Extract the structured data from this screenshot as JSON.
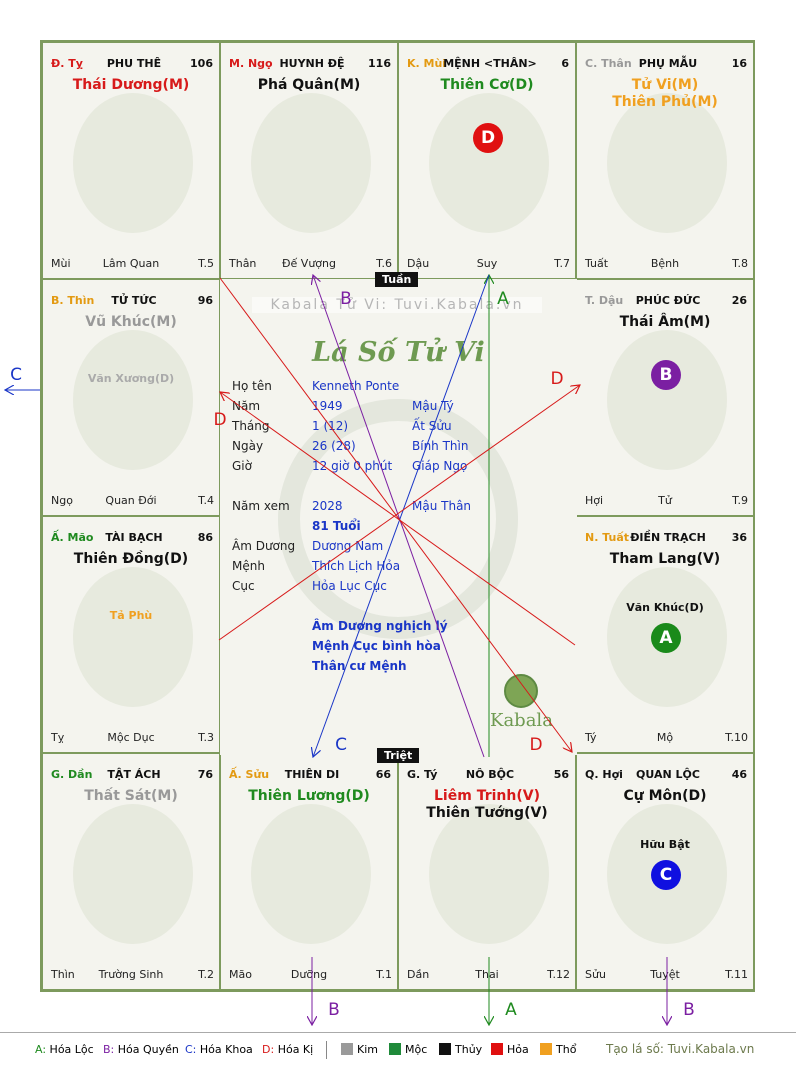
{
  "center": {
    "brand": "Kabala Tử Vi: Tuvi.Kabala.vn",
    "logo": "Lá Số Tử Vi",
    "tag_top": "Tuần",
    "tag_bottom": "Triệt",
    "rows": [
      {
        "label": "Họ tên",
        "v1": "Kenneth Ponte",
        "v2": ""
      },
      {
        "label": "Năm",
        "v1": "1949",
        "v2": "Mậu Tý"
      },
      {
        "label": "Tháng",
        "v1": "1  (12)",
        "v2": "Ất Sửu"
      },
      {
        "label": "Ngày",
        "v1": "26  (28)",
        "v2": "Bính Thìn"
      },
      {
        "label": "Giờ",
        "v1": "12 giờ 0 phút",
        "v2": "Giáp Ngọ"
      }
    ],
    "nam_xem_label": "Năm xem",
    "nam_xem_value": "2028",
    "nam_xem_can_chi": "Mậu Thân",
    "tuoi": "81 Tuổi",
    "rows2": [
      {
        "label": "Âm Dương",
        "v1": "Dương Nam"
      },
      {
        "label": "Mệnh",
        "v1": "Thích Lịch Hỏa"
      },
      {
        "label": "Cục",
        "v1": "Hỏa Lục Cục"
      }
    ],
    "notes": [
      "Âm Dương nghịch lý",
      "Mệnh Cục bình hòa",
      "Thân cư Mệnh"
    ],
    "kabala_logo": "Kabala"
  },
  "cells": [
    {
      "branch": "Đ. Tỵ",
      "branch_color": "#d71a1a",
      "name": "PHU THÊ",
      "num": "106",
      "stars": [
        {
          "t": "Thái Dương(M)",
          "c": "#d71a1a"
        }
      ],
      "minor": "",
      "circle": "",
      "bl": "Mùi",
      "bm": "Lâm Quan",
      "br": "T.5"
    },
    {
      "branch": "M. Ngọ",
      "branch_color": "#d71a1a",
      "name": "HUYNH ĐỆ",
      "num": "116",
      "stars": [
        {
          "t": "Phá Quân(M)",
          "c": "#111111"
        }
      ],
      "minor": "",
      "circle": "",
      "bl": "Thân",
      "bm": "Đế Vượng",
      "br": "T.6"
    },
    {
      "branch": "K. Mùi",
      "branch_color": "#e39a12",
      "name": "MỆNH <THÂN>",
      "num": "6",
      "stars": [
        {
          "t": "Thiên Cơ(D)",
          "c": "#1f8a1f"
        }
      ],
      "minor": "",
      "circle": "D",
      "circle_color": "#e01010",
      "bl": "Dậu",
      "bm": "Suy",
      "br": "T.7"
    },
    {
      "branch": "C. Thân",
      "branch_color": "#999999",
      "name": "PHỤ MẪU",
      "num": "16",
      "stars": [
        {
          "t": "Tử Vi(M)",
          "c": "#f0a020"
        },
        {
          "t": "Thiên Phủ(M)",
          "c": "#f0a020"
        }
      ],
      "minor": "",
      "circle": "",
      "bl": "Tuất",
      "bm": "Bệnh",
      "br": "T.8"
    },
    {
      "branch": "B. Thìn",
      "branch_color": "#e39a12",
      "name": "TỬ TỨC",
      "num": "96",
      "stars": [
        {
          "t": "Vũ Khúc(M)",
          "c": "#999999"
        }
      ],
      "minor": "Văn Xương(D)",
      "minor_color": "#aaaaaa",
      "circle": "",
      "bl": "Ngọ",
      "bm": "Quan Đới",
      "br": "T.4"
    },
    {
      "branch": "T. Dậu",
      "branch_color": "#999999",
      "name": "PHÚC ĐỨC",
      "num": "26",
      "stars": [
        {
          "t": "Thái Âm(M)",
          "c": "#111111"
        }
      ],
      "minor": "",
      "circle": "B",
      "circle_color": "#7b1fa2",
      "bl": "Hợi",
      "bm": "Tử",
      "br": "T.9"
    },
    {
      "branch": "Ấ. Mão",
      "branch_color": "#1f8a1f",
      "name": "TÀI BẠCH",
      "num": "86",
      "stars": [
        {
          "t": "Thiên Đồng(D)",
          "c": "#111111"
        }
      ],
      "minor": "Tả Phù",
      "minor_color": "#f0a020",
      "circle": "",
      "bl": "Tỵ",
      "bm": "Mộc Dục",
      "br": "T.3"
    },
    {
      "branch": "N. Tuất",
      "branch_color": "#e39a12",
      "name": "ĐIỀN TRẠCH",
      "num": "36",
      "stars": [
        {
          "t": "Tham Lang(V)",
          "c": "#111111"
        }
      ],
      "minor": "Văn Khúc(D)",
      "minor_color": "#111111",
      "circle": "A",
      "circle_color": "#1a8a1a",
      "bl": "Tý",
      "bm": "Mộ",
      "br": "T.10"
    },
    {
      "branch": "G. Dần",
      "branch_color": "#1f8a1f",
      "name": "TẬT ÁCH",
      "num": "76",
      "stars": [
        {
          "t": "Thất Sát(M)",
          "c": "#999999"
        }
      ],
      "minor": "",
      "circle": "",
      "bl": "Thìn",
      "bm": "Trường Sinh",
      "br": "T.2"
    },
    {
      "branch": "Ấ. Sửu",
      "branch_color": "#e39a12",
      "name": "THIÊN DI",
      "num": "66",
      "stars": [
        {
          "t": "Thiên Lương(D)",
          "c": "#1f8a1f"
        }
      ],
      "minor": "",
      "circle": "",
      "bl": "Mão",
      "bm": "Dưỡng",
      "br": "T.1"
    },
    {
      "branch": "G. Tý",
      "branch_color": "#111111",
      "name": "NÔ BỘC",
      "num": "56",
      "stars": [
        {
          "t": "Liêm Trinh(V)",
          "c": "#d71a1a"
        },
        {
          "t": "Thiên Tướng(V)",
          "c": "#111111"
        }
      ],
      "minor": "",
      "circle": "",
      "bl": "Dần",
      "bm": "Thai",
      "br": "T.12"
    },
    {
      "branch": "Q. Hợi",
      "branch_color": "#111111",
      "name": "QUAN LỘC",
      "num": "46",
      "stars": [
        {
          "t": "Cự Môn(D)",
          "c": "#111111"
        }
      ],
      "minor": "Hữu Bật",
      "minor_color": "#111111",
      "circle": "C",
      "circle_color": "#1010e0",
      "bl": "Sửu",
      "bm": "Tuyệt",
      "br": "T.11"
    }
  ],
  "arrows": {
    "colors": {
      "A": "#1f8a1f",
      "B": "#7b1fa2",
      "C": "#1a36c7",
      "D": "#d71a1a"
    },
    "labels": [
      "A",
      "B",
      "C",
      "D"
    ]
  },
  "legend": {
    "items": [
      {
        "k": "A:",
        "v": "Hóa Lộc",
        "c": "#1f8a1f"
      },
      {
        "k": "B:",
        "v": "Hóa Quyền",
        "c": "#7b1fa2"
      },
      {
        "k": "C:",
        "v": "Hóa Khoa",
        "c": "#1a36c7"
      },
      {
        "k": "D:",
        "v": "Hóa Kị",
        "c": "#d71a1a"
      }
    ],
    "elements": [
      {
        "v": "Kim",
        "c": "#9a9a9a"
      },
      {
        "v": "Mộc",
        "c": "#1f8a3a"
      },
      {
        "v": "Thủy",
        "c": "#111111"
      },
      {
        "v": "Hỏa",
        "c": "#e01010"
      },
      {
        "v": "Thổ",
        "c": "#f0a020"
      }
    ],
    "credit": "Tạo lá số: Tuvi.Kabala.vn"
  }
}
